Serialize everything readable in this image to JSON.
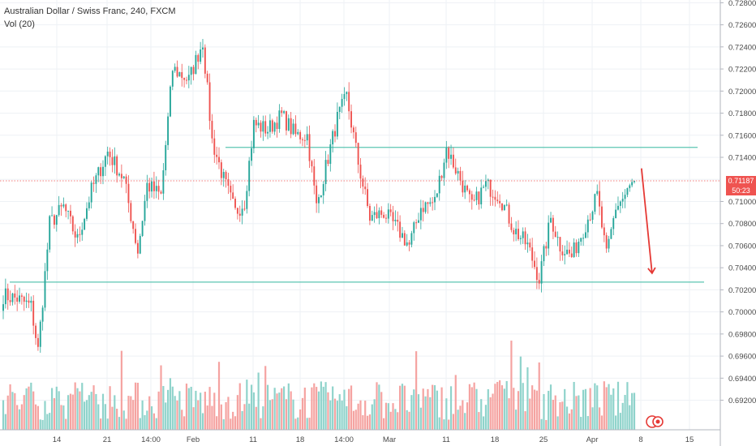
{
  "legend": {
    "title": "Australian Dollar / Swiss Franc, 240, FXCM",
    "indicator": "Vol (20)"
  },
  "price_badge": {
    "price": "0.71187",
    "countdown": "50:23"
  },
  "colors": {
    "up": "#26a69a",
    "down": "#ef5350",
    "up_volume": "#8fd3cb",
    "down_volume": "#f5a3a1",
    "level": "#5cc6b2",
    "grid": "#eef1f5",
    "arrow": "#e53935"
  },
  "chart_data": {
    "type": "candlestick",
    "symbol": "AUDCHF",
    "ylim": [
      0.6905,
      0.7281
    ],
    "y_ticks": [
      0.692,
      0.694,
      0.696,
      0.698,
      0.7,
      0.702,
      0.704,
      0.706,
      0.708,
      0.71,
      0.712,
      0.714,
      0.716,
      0.718,
      0.72,
      0.722,
      0.724,
      0.726,
      0.728
    ],
    "x_labels": [
      "14",
      "21",
      "14:00",
      "Feb",
      "11",
      "18",
      "14:00",
      "Mar",
      "11",
      "18",
      "25",
      "Apr",
      "8",
      "15"
    ],
    "current_price": 0.71187,
    "horizontal_levels": [
      0.7149,
      0.7027
    ],
    "close_path": [
      {
        "i": 0,
        "c": 0.7015
      },
      {
        "i": 6,
        "c": 0.7012
      },
      {
        "i": 12,
        "c": 0.7005
      },
      {
        "i": 15,
        "c": 0.6965
      },
      {
        "i": 20,
        "c": 0.708
      },
      {
        "i": 26,
        "c": 0.7095
      },
      {
        "i": 32,
        "c": 0.7065
      },
      {
        "i": 38,
        "c": 0.711
      },
      {
        "i": 45,
        "c": 0.7145
      },
      {
        "i": 52,
        "c": 0.712
      },
      {
        "i": 58,
        "c": 0.7055
      },
      {
        "i": 62,
        "c": 0.7115
      },
      {
        "i": 68,
        "c": 0.7105
      },
      {
        "i": 73,
        "c": 0.722
      },
      {
        "i": 80,
        "c": 0.721
      },
      {
        "i": 86,
        "c": 0.7245
      },
      {
        "i": 90,
        "c": 0.7155
      },
      {
        "i": 95,
        "c": 0.712
      },
      {
        "i": 100,
        "c": 0.709
      },
      {
        "i": 104,
        "c": 0.71
      },
      {
        "i": 108,
        "c": 0.717
      },
      {
        "i": 114,
        "c": 0.7165
      },
      {
        "i": 120,
        "c": 0.7178
      },
      {
        "i": 126,
        "c": 0.716
      },
      {
        "i": 131,
        "c": 0.716
      },
      {
        "i": 135,
        "c": 0.7095
      },
      {
        "i": 140,
        "c": 0.714
      },
      {
        "i": 144,
        "c": 0.7175
      },
      {
        "i": 148,
        "c": 0.7195
      },
      {
        "i": 153,
        "c": 0.7135
      },
      {
        "i": 158,
        "c": 0.7085
      },
      {
        "i": 164,
        "c": 0.709
      },
      {
        "i": 170,
        "c": 0.7075
      },
      {
        "i": 175,
        "c": 0.706
      },
      {
        "i": 180,
        "c": 0.7095
      },
      {
        "i": 186,
        "c": 0.71
      },
      {
        "i": 191,
        "c": 0.7148
      },
      {
        "i": 196,
        "c": 0.7125
      },
      {
        "i": 202,
        "c": 0.7095
      },
      {
        "i": 208,
        "c": 0.7115
      },
      {
        "i": 214,
        "c": 0.7105
      },
      {
        "i": 220,
        "c": 0.7075
      },
      {
        "i": 226,
        "c": 0.706
      },
      {
        "i": 231,
        "c": 0.703
      },
      {
        "i": 236,
        "c": 0.7085
      },
      {
        "i": 240,
        "c": 0.706
      },
      {
        "i": 245,
        "c": 0.705
      },
      {
        "i": 250,
        "c": 0.7075
      },
      {
        "i": 256,
        "c": 0.7105
      },
      {
        "i": 260,
        "c": 0.705
      },
      {
        "i": 264,
        "c": 0.7095
      },
      {
        "i": 268,
        "c": 0.7105
      },
      {
        "i": 272,
        "c": 0.7119
      }
    ],
    "candle_count": 273,
    "arrow": {
      "from": {
        "i": 273,
        "price": 0.713
      },
      "to": {
        "i": 278,
        "price": 0.7035
      }
    }
  }
}
